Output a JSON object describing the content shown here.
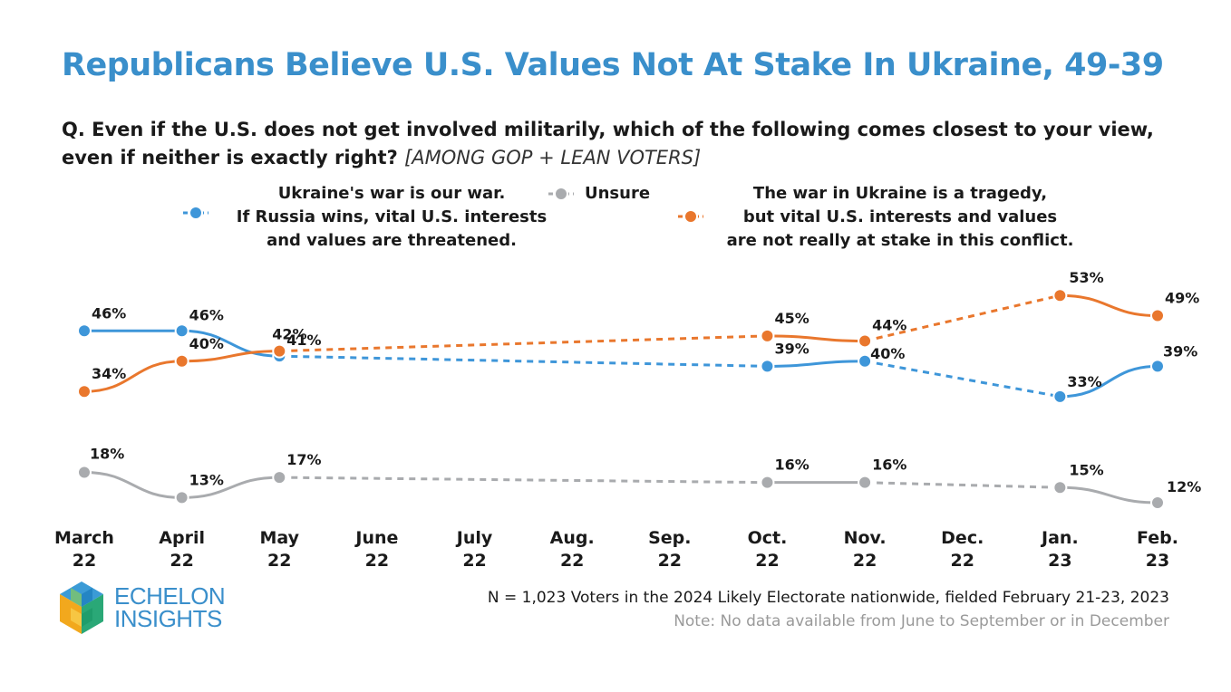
{
  "header": {
    "title": "Republicans Believe U.S. Values Not At Stake In Ukraine, 49-39",
    "question": "Q. Even if the U.S. does not get involved militarily, which of the following comes closest to your view, even if neither is exactly right?",
    "question_tag": "[AMONG GOP + LEAN VOTERS]"
  },
  "footer": {
    "logo_text": "ECHELON\nINSIGHTS",
    "note_sample": "N = 1,023 Voters in the 2024 Likely Electorate nationwide, fielded February 21-23, 2023",
    "note_missing": "Note: No data available from June to September or in December"
  },
  "chart_data": {
    "type": "line",
    "categories": [
      "March\n22",
      "April\n22",
      "May\n22",
      "June\n22",
      "July\n22",
      "Aug.\n22",
      "Sep.\n22",
      "Oct.\n22",
      "Nov.\n22",
      "Dec.\n22",
      "Jan.\n23",
      "Feb.\n23"
    ],
    "series": [
      {
        "name": "Ukraine's war is our war.\nIf Russia wins, vital U.S. interests\nand values are threatened.",
        "color": "#3e96d9",
        "values": [
          46,
          46,
          41,
          null,
          null,
          null,
          null,
          39,
          40,
          null,
          33,
          39
        ],
        "labels": [
          "46%",
          "46%",
          "41%",
          null,
          null,
          null,
          null,
          "39%",
          "40%",
          null,
          "33%",
          "39%"
        ]
      },
      {
        "name": "Unsure",
        "color": "#a9abae",
        "values": [
          18,
          13,
          17,
          null,
          null,
          null,
          null,
          16,
          16,
          null,
          15,
          12
        ],
        "labels": [
          "18%",
          "13%",
          "17%",
          null,
          null,
          null,
          null,
          "16%",
          "16%",
          null,
          "15%",
          "12%"
        ]
      },
      {
        "name": "The war in Ukraine is a tragedy,\nbut vital U.S. interests and values\nare not really at stake in this conflict.",
        "color": "#e9772d",
        "values": [
          34,
          40,
          42,
          null,
          null,
          null,
          null,
          45,
          44,
          null,
          53,
          49
        ],
        "labels": [
          "34%",
          "40%",
          "42%",
          null,
          null,
          null,
          null,
          "45%",
          "44%",
          null,
          "53%",
          "49%"
        ]
      }
    ],
    "line_style_note": "solid between consecutive surveyed months, dashed across months with no data",
    "y_axis_visible": false,
    "grid": false,
    "legend_position": "top"
  }
}
